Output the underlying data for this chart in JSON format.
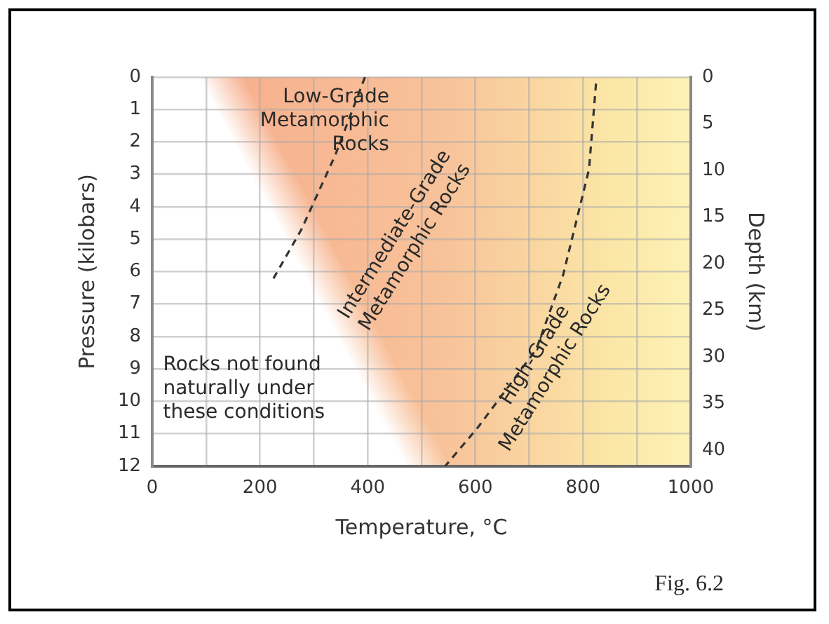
{
  "chart_data": {
    "type": "line",
    "xlabel": "Temperature, °C",
    "ylabel": "Pressure (kilobars)",
    "y2label": "Depth (km)",
    "series": [
      {
        "color": "#333333",
        "x": [
          395,
          340,
          277,
          222
        ],
        "values": [
          0,
          2.4,
          4.7,
          6.3
        ]
      },
      {
        "color": "#333333",
        "x": [
          824,
          811,
          763,
          713,
          605,
          544
        ],
        "values": [
          0.2,
          2.85,
          6.1,
          8.4,
          10.8,
          12
        ]
      }
    ],
    "xlim": [
      0,
      1000
    ],
    "xticks": [
      0,
      {
        "value": 100,
        "label": null
      },
      200,
      {
        "value": 300,
        "label": null
      },
      400,
      {
        "value": 500,
        "label": null
      },
      600,
      {
        "value": 700,
        "label": null
      },
      800,
      {
        "value": 900,
        "label": null
      },
      1000
    ],
    "ylim": [
      12,
      0
    ],
    "yticks": [
      0,
      1,
      2,
      3,
      4,
      5,
      6,
      7,
      8,
      9,
      10,
      11,
      12
    ],
    "y2lim": [
      41.7,
      0
    ],
    "y2ticks": [
      0,
      5,
      10,
      15,
      20,
      25,
      30,
      35,
      40
    ],
    "grid": true,
    "legend": false,
    "marker": "none",
    "line_style": "dashed",
    "annotations": [
      "Low-Grade Metamorphic Rocks",
      "Intermediate-Grade Metamorphic Rocks",
      "High-Grade Metamorphic Rocks",
      "Rocks not found naturally under these conditions",
      "Fig. 6.2"
    ]
  }
}
